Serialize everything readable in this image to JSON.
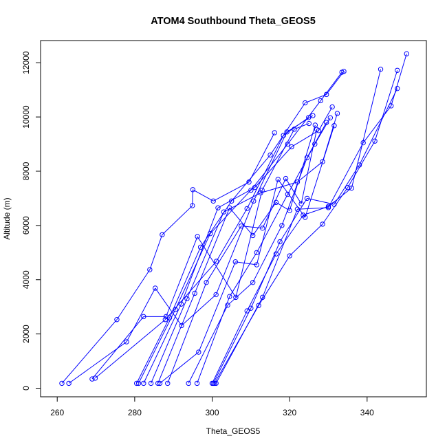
{
  "chart_data": {
    "type": "scatter",
    "title": "ATOM4 Southbound Theta_GEOS5",
    "xlabel": "Theta_GEOS5",
    "ylabel": "Altitude (m)",
    "xlim": [
      255.7,
      355.3
    ],
    "ylim": [
      -317,
      12817
    ],
    "x_ticks": [
      260,
      280,
      300,
      320,
      340
    ],
    "y_ticks": [
      0,
      2000,
      4000,
      6000,
      8000,
      10000,
      12000
    ],
    "x_tick_labels": [
      "260",
      "280",
      "300",
      "320",
      "340"
    ],
    "y_tick_labels": [
      "0",
      "2000",
      "4000",
      "6000",
      "8000",
      "10000",
      "12000"
    ],
    "grid": false,
    "legend": "none",
    "series_color": "#0000ff",
    "marker": "open-circle",
    "series": [
      {
        "x": [
          261.2,
          275.4,
          283.9,
          287.1,
          294.9,
          295.0,
          300.3,
          309.5,
          316.1
        ],
        "y": [
          180,
          2530,
          4370,
          5660,
          6730,
          7320,
          6900,
          7600,
          9420
        ]
      },
      {
        "x": [
          263.0,
          277.9,
          285.3,
          292.1,
          301.0,
          310.7,
          319.3,
          326.0
        ],
        "y": [
          180,
          1710,
          3690,
          2310,
          3450,
          6900,
          9450,
          10050
        ]
      },
      {
        "x": [
          269.0,
          282.3,
          288.1,
          296.2,
          306.1,
          312.9,
          321.2,
          325.0
        ],
        "y": [
          340,
          2640,
          2640,
          5590,
          3350,
          7300,
          9550,
          9760
        ]
      },
      {
        "x": [
          269.8,
          287.9,
          301.1,
          309.0,
          318.4,
          324.9
        ],
        "y": [
          370,
          2530,
          4680,
          6620,
          9320,
          9980
        ]
      },
      {
        "x": [
          280.5,
          289.0,
          297.0,
          305.0,
          315.0,
          324.0,
          329.5,
          334.0
        ],
        "y": [
          180,
          2600,
          5200,
          6900,
          8600,
          10520,
          10830,
          11680
        ]
      },
      {
        "x": [
          281.0,
          290.5,
          299.5,
          310.0,
          319.5,
          328.0,
          333.5
        ],
        "y": [
          180,
          2900,
          5700,
          7300,
          9000,
          10600,
          11650
        ]
      },
      {
        "x": [
          282.3,
          292.0,
          301.5,
          311.0,
          320.5,
          327.5,
          331.0
        ],
        "y": [
          180,
          3100,
          6650,
          7400,
          8900,
          9500,
          10370
        ]
      },
      {
        "x": [
          284.2,
          293.5,
          303.0,
          312.5,
          322.0,
          328.5,
          332.3
        ],
        "y": [
          180,
          3300,
          6500,
          7200,
          7600,
          8350,
          10130
        ]
      },
      {
        "x": [
          286.0,
          295.5,
          304.5,
          310.5,
          316.5,
          320.0,
          326.6
        ],
        "y": [
          180,
          3500,
          6650,
          5630,
          6850,
          6550,
          9700
        ]
      },
      {
        "x": [
          286.5,
          296.5,
          306.0,
          311.5,
          317.0,
          324.0,
          331.5
        ],
        "y": [
          180,
          1330,
          4660,
          4550,
          7700,
          6300,
          9680
        ]
      },
      {
        "x": [
          288.5,
          298.5,
          307.5,
          313.0,
          319.0,
          323.0,
          327.0
        ],
        "y": [
          180,
          3900,
          5980,
          5900,
          7730,
          6800,
          9540
        ]
      },
      {
        "x": [
          293.9,
          304.0,
          310.5,
          318.0,
          324.5,
          329.5
        ],
        "y": [
          180,
          3060,
          3900,
          6000,
          8500,
          9800
        ]
      },
      {
        "x": [
          296.1,
          304.5,
          311.5,
          319.5,
          326.5,
          330.5
        ],
        "y": [
          180,
          3380,
          5000,
          7150,
          9000,
          9970
        ]
      },
      {
        "x": [
          300.0,
          309.0,
          316.5,
          323.5,
          330.0,
          336.0,
          343.5
        ],
        "y": [
          180,
          2850,
          4950,
          6380,
          6700,
          7380,
          11760
        ]
      },
      {
        "x": [
          300.3,
          310.0,
          317.5,
          324.5,
          331.5,
          338.0,
          347.8
        ],
        "y": [
          180,
          2950,
          5400,
          7000,
          6780,
          8230,
          11050
        ]
      },
      {
        "x": [
          300.6,
          312.0,
          320.0,
          328.5,
          335.0,
          342.0,
          347.8
        ],
        "y": [
          180,
          3050,
          4880,
          6050,
          7400,
          9110,
          11720
        ]
      },
      {
        "x": [
          301.0,
          313.0,
          322.0,
          330.0,
          339.0,
          346.2,
          350.2
        ],
        "y": [
          180,
          3350,
          6600,
          6660,
          9050,
          10410,
          12330
        ]
      }
    ]
  }
}
